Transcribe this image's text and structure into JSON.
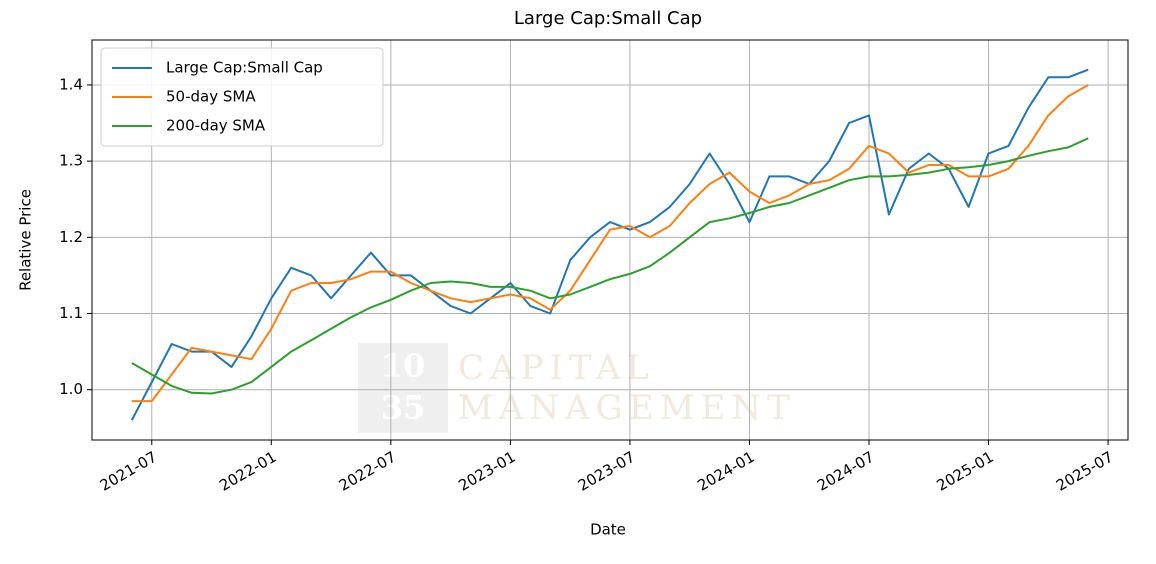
{
  "chart_data": {
    "type": "line",
    "title": "Large Cap:Small Cap",
    "xlabel": "Date",
    "ylabel": "Relative Price",
    "x": [
      "2021-06",
      "2021-07",
      "2021-08",
      "2021-09",
      "2021-10",
      "2021-11",
      "2021-12",
      "2022-01",
      "2022-02",
      "2022-03",
      "2022-04",
      "2022-05",
      "2022-06",
      "2022-07",
      "2022-08",
      "2022-09",
      "2022-10",
      "2022-11",
      "2022-12",
      "2023-01",
      "2023-02",
      "2023-03",
      "2023-04",
      "2023-05",
      "2023-06",
      "2023-07",
      "2023-08",
      "2023-09",
      "2023-10",
      "2023-11",
      "2023-12",
      "2024-01",
      "2024-02",
      "2024-03",
      "2024-04",
      "2024-05",
      "2024-06",
      "2024-07",
      "2024-08",
      "2024-09",
      "2024-10",
      "2024-11",
      "2024-12",
      "2025-01",
      "2025-02",
      "2025-03",
      "2025-04",
      "2025-05",
      "2025-06"
    ],
    "series": [
      {
        "name": "Large Cap:Small Cap",
        "color": "#1f77b4",
        "values": [
          0.96,
          1.01,
          1.06,
          1.05,
          1.05,
          1.03,
          1.07,
          1.12,
          1.16,
          1.15,
          1.12,
          1.15,
          1.18,
          1.15,
          1.15,
          1.13,
          1.11,
          1.1,
          1.12,
          1.14,
          1.11,
          1.1,
          1.17,
          1.2,
          1.22,
          1.21,
          1.22,
          1.24,
          1.27,
          1.31,
          1.27,
          1.22,
          1.28,
          1.28,
          1.27,
          1.3,
          1.35,
          1.36,
          1.23,
          1.29,
          1.31,
          1.29,
          1.24,
          1.31,
          1.32,
          1.37,
          1.41,
          1.41,
          1.42
        ]
      },
      {
        "name": "50-day SMA",
        "color": "#ff7f0e",
        "values": [
          0.985,
          0.985,
          1.02,
          1.055,
          1.05,
          1.045,
          1.04,
          1.08,
          1.13,
          1.14,
          1.14,
          1.145,
          1.155,
          1.155,
          1.14,
          1.13,
          1.12,
          1.115,
          1.12,
          1.125,
          1.12,
          1.105,
          1.13,
          1.17,
          1.21,
          1.215,
          1.2,
          1.215,
          1.245,
          1.27,
          1.285,
          1.26,
          1.245,
          1.255,
          1.27,
          1.275,
          1.29,
          1.32,
          1.31,
          1.285,
          1.295,
          1.295,
          1.28,
          1.28,
          1.29,
          1.32,
          1.36,
          1.385,
          1.4
        ]
      },
      {
        "name": "200-day SMA",
        "color": "#2ca02c",
        "values": [
          1.035,
          1.02,
          1.005,
          0.996,
          0.995,
          1.0,
          1.01,
          1.03,
          1.05,
          1.065,
          1.08,
          1.095,
          1.108,
          1.118,
          1.13,
          1.14,
          1.142,
          1.14,
          1.135,
          1.135,
          1.13,
          1.12,
          1.125,
          1.135,
          1.145,
          1.152,
          1.162,
          1.18,
          1.2,
          1.22,
          1.225,
          1.232,
          1.24,
          1.245,
          1.255,
          1.265,
          1.275,
          1.28,
          1.28,
          1.282,
          1.285,
          1.29,
          1.292,
          1.295,
          1.3,
          1.307,
          1.313,
          1.318,
          1.33
        ]
      }
    ],
    "xlim": [
      "2021-04",
      "2025-08"
    ],
    "xticks": [
      "2021-07",
      "2022-01",
      "2022-07",
      "2023-01",
      "2023-07",
      "2024-01",
      "2024-07",
      "2025-01",
      "2025-07"
    ],
    "ylim": [
      0.934,
      1.459
    ],
    "yticks": [
      {
        "value": 1,
        "label": "1.0"
      },
      1.1,
      1.2,
      1.3,
      1.4
    ],
    "grid": true,
    "legend": "upper-left",
    "watermark": [
      "10",
      "35",
      "CAPITAL",
      "MANAGEMENT"
    ]
  }
}
